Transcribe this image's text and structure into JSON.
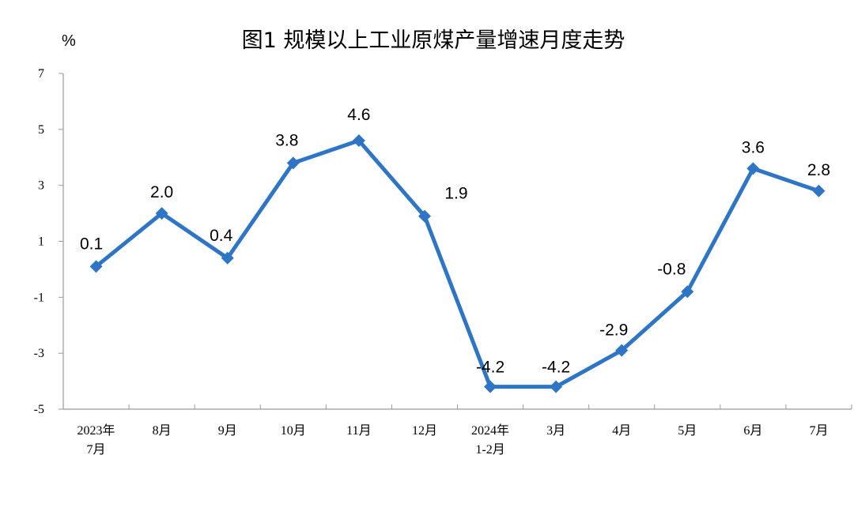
{
  "chart_data": {
    "type": "line",
    "title": "图1  规模以上工业原煤产量增速月度走势",
    "ylabel": "%",
    "xlabel": "",
    "categories": [
      [
        "2023年",
        "7月"
      ],
      [
        "8月"
      ],
      [
        "9月"
      ],
      [
        "10月"
      ],
      [
        "11月"
      ],
      [
        "12月"
      ],
      [
        "2024年",
        "1-2月"
      ],
      [
        "3月"
      ],
      [
        "4月"
      ],
      [
        "5月"
      ],
      [
        "6月"
      ],
      [
        "7月"
      ]
    ],
    "values": [
      0.1,
      2.0,
      0.4,
      3.8,
      4.6,
      1.9,
      -4.2,
      -4.2,
      -2.9,
      -0.8,
      3.6,
      2.8
    ],
    "data_labels": [
      "0.1",
      "2.0",
      "0.4",
      "3.8",
      "4.6",
      "1.9",
      "-4.2",
      "-4.2",
      "-2.9",
      "-0.8",
      "3.6",
      "2.8"
    ],
    "ylim": [
      -5,
      7
    ],
    "yticks": [
      7,
      5,
      3,
      1,
      -1,
      -3,
      -5
    ],
    "grid": false,
    "legend": "none",
    "series_color": "#2e75c6"
  }
}
